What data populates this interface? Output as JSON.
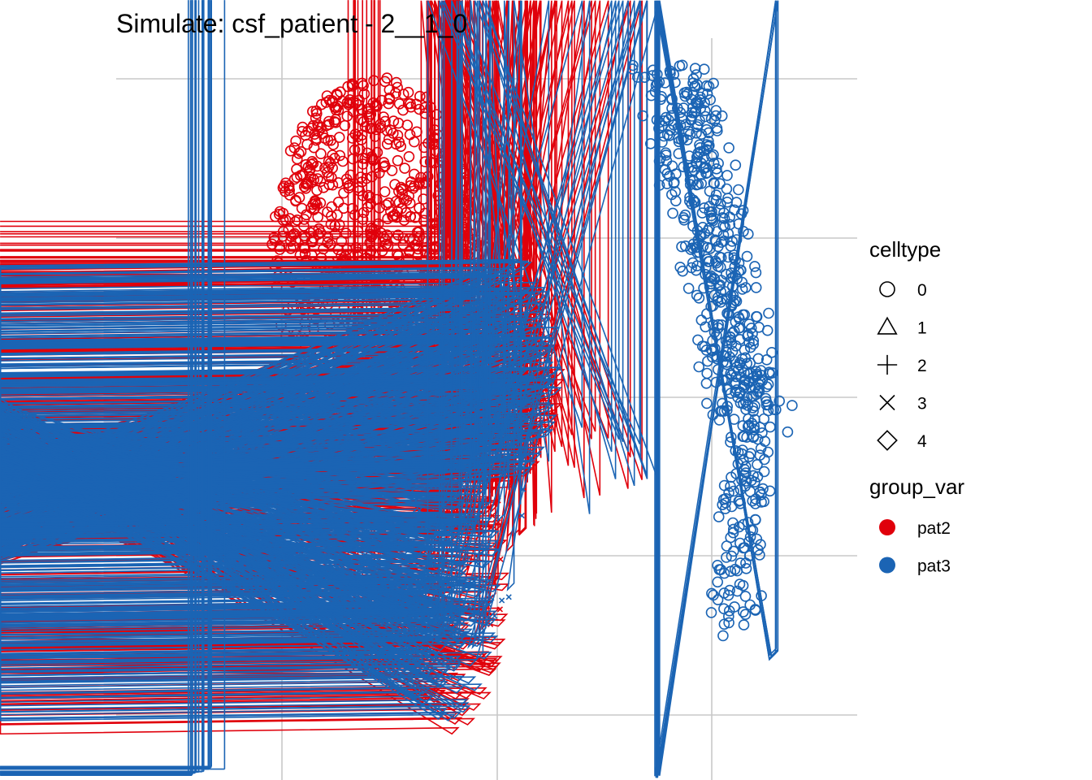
{
  "chart_data": {
    "type": "scatter",
    "title": "Simulate: csf_patient - 2__1_0",
    "xlabel": "",
    "ylabel": "",
    "xlim": [
      -1.0,
      1.0
    ],
    "ylim": [
      -1.0,
      1.0
    ],
    "grid": true,
    "legend": {
      "placement": "right",
      "shape": {
        "title": "celltype",
        "entries": [
          {
            "label": "0",
            "shape": "circle"
          },
          {
            "label": "1",
            "shape": "triangle"
          },
          {
            "label": "2",
            "shape": "plus"
          },
          {
            "label": "3",
            "shape": "cross"
          },
          {
            "label": "4",
            "shape": "diamond"
          }
        ]
      },
      "color": {
        "title": "group_var",
        "entries": [
          {
            "label": "pat2",
            "color": "#e0000b"
          },
          {
            "label": "pat3",
            "color": "#1b64b4"
          }
        ]
      }
    },
    "clusters": [
      {
        "group": "pat2",
        "celltype": "0",
        "n": 900,
        "shape": "blob",
        "cx": -0.3,
        "cy": 0.42,
        "rx": 0.28,
        "ry": 0.48
      },
      {
        "group": "pat2",
        "celltype": "0",
        "n": 60,
        "shape": "blob",
        "cx": -0.22,
        "cy": 0.05,
        "rx": 0.18,
        "ry": 0.12
      },
      {
        "group": "pat2",
        "celltype": "2",
        "n": 30,
        "shape": "blob",
        "cx": -0.08,
        "cy": 0.42,
        "rx": 0.04,
        "ry": 0.1
      },
      {
        "group": "pat2",
        "celltype": "2",
        "n": 14,
        "shape": "blob",
        "cx": -0.33,
        "cy": -0.66,
        "rx": 0.06,
        "ry": 0.08
      },
      {
        "group": "pat2",
        "celltype": "3",
        "n": 40,
        "shape": "blob",
        "cx": 0.03,
        "cy": 0.33,
        "rx": 0.1,
        "ry": 0.2
      },
      {
        "group": "pat2",
        "celltype": "1",
        "n": 180,
        "shape": "blob",
        "cx": 0.05,
        "cy": 0.08,
        "rx": 0.16,
        "ry": 0.3
      },
      {
        "group": "pat2",
        "celltype": "1",
        "n": 180,
        "shape": "blob",
        "cx": -0.08,
        "cy": -0.5,
        "rx": 0.14,
        "ry": 0.38
      },
      {
        "group": "pat2",
        "celltype": "4",
        "n": 40,
        "shape": "blob",
        "cx": -0.05,
        "cy": -0.35,
        "rx": 0.16,
        "ry": 0.32
      },
      {
        "group": "pat2",
        "celltype": "3",
        "n": 40,
        "shape": "blob",
        "cx": -0.1,
        "cy": -0.4,
        "rx": 0.18,
        "ry": 0.3
      },
      {
        "group": "pat3",
        "celltype": "1",
        "n": 230,
        "shape": "blob",
        "cx": 0.06,
        "cy": 0.1,
        "rx": 0.15,
        "ry": 0.3
      },
      {
        "group": "pat3",
        "celltype": "1",
        "n": 230,
        "shape": "blob",
        "cx": -0.1,
        "cy": -0.48,
        "rx": 0.14,
        "ry": 0.38
      },
      {
        "group": "pat3",
        "celltype": "3",
        "n": 30,
        "shape": "blob",
        "cx": -0.02,
        "cy": -0.2,
        "rx": 0.16,
        "ry": 0.4
      },
      {
        "group": "pat3",
        "celltype": "4",
        "n": 20,
        "shape": "blob",
        "cx": -0.05,
        "cy": -0.4,
        "rx": 0.14,
        "ry": 0.3
      },
      {
        "group": "pat3",
        "celltype": "0",
        "n": 520,
        "shape": "band",
        "x0": 0.49,
        "y0": 0.98,
        "x1": 0.72,
        "y1": -0.04,
        "width": 0.085
      },
      {
        "group": "pat3",
        "celltype": "0",
        "n": 130,
        "shape": "band",
        "x0": 0.7,
        "y0": -0.04,
        "x1": 0.67,
        "y1": -0.6,
        "width": 0.055
      },
      {
        "group": "pat3",
        "celltype": "4",
        "n": 6,
        "shape": "blob",
        "cx": 0.78,
        "cy": -0.67,
        "rx": 0.012,
        "ry": 0.012
      },
      {
        "group": "pat3",
        "celltype": "2",
        "n": 60,
        "shape": "band",
        "x0": -0.98,
        "y0": -1.05,
        "x1": -0.72,
        "y1": -0.96,
        "width": 0.02
      }
    ]
  }
}
